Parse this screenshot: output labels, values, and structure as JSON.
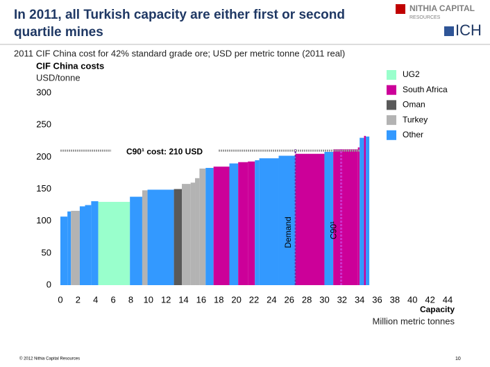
{
  "header": {
    "title_lines": [
      "In 2011, all Turkish capacity are either first or second",
      "quartile mines"
    ],
    "logos": [
      "NITHIA CAPITAL",
      "RESOURCES",
      "ICH"
    ]
  },
  "footer": {
    "copyright": "© 2012 Nithia Capital Resources",
    "page": "10"
  },
  "chart_data": {
    "type": "cost-curve",
    "subtitle": "2011 CIF China cost for 42% standard grade ore; USD per metric tonne (2011 real)",
    "y_label": "CIF China costs",
    "y_unit": "USD/tonne",
    "x_label": "Capacity",
    "x_unit": "Million metric tonnes",
    "xlim": [
      0,
      44
    ],
    "xticks": [
      0,
      2,
      4,
      6,
      8,
      10,
      12,
      14,
      16,
      18,
      20,
      22,
      24,
      26,
      28,
      30,
      32,
      34,
      36,
      38,
      40,
      42,
      44
    ],
    "ylim": [
      0,
      300
    ],
    "yticks": [
      0,
      50,
      100,
      150,
      200,
      250,
      300
    ],
    "legend": [
      {
        "name": "UG2",
        "color": "#99ffcc"
      },
      {
        "name": "South Africa",
        "color": "#cc0099"
      },
      {
        "name": "Oman",
        "color": "#595959"
      },
      {
        "name": "Turkey",
        "color": "#b3b3b3"
      },
      {
        "name": "Other",
        "color": "#3399ff"
      }
    ],
    "x": [
      0,
      0.8,
      1.2,
      2.2,
      2.8,
      3.5,
      4.3,
      7.9,
      9.3,
      9.9,
      12.9,
      13.8,
      14.8,
      15.3,
      15.8,
      16.5,
      17.4,
      19.2,
      20.2,
      21.3,
      22.1,
      22.6,
      24.8,
      26.7,
      30.0,
      31.0,
      33.8,
      34.0,
      34.5,
      34.7
    ],
    "widths": [
      0.8,
      0.4,
      1.0,
      0.6,
      0.7,
      0.8,
      3.6,
      1.4,
      0.6,
      3.0,
      0.9,
      1.0,
      0.5,
      0.5,
      0.7,
      0.9,
      1.8,
      1.0,
      1.1,
      0.8,
      0.5,
      2.2,
      1.9,
      3.3,
      1.0,
      2.8,
      0.2,
      0.5,
      0.2,
      0.4
    ],
    "values": [
      107,
      115,
      116,
      123,
      125,
      131,
      130,
      138,
      148,
      149,
      150,
      158,
      160,
      167,
      182,
      183,
      185,
      190,
      192,
      193,
      195,
      198,
      202,
      205,
      208,
      212,
      215,
      230,
      233,
      232
    ],
    "groups": [
      "Other",
      "Other",
      "Turkey",
      "Other",
      "Other",
      "Other",
      "UG2",
      "Other",
      "Turkey",
      "Other",
      "Oman",
      "Turkey",
      "Turkey",
      "Turkey",
      "Turkey",
      "Other",
      "South Africa",
      "Other",
      "South Africa",
      "South Africa",
      "Other",
      "Other",
      "Other",
      "South Africa",
      "Other",
      "South Africa",
      "South Africa",
      "Other",
      "South Africa",
      "Other"
    ],
    "cost_line": {
      "value": 210,
      "label": "C90¹ cost: 210 USD"
    },
    "demand_line": {
      "x": 26.7,
      "label": "Demand"
    },
    "c90_line": {
      "x": 31.9,
      "label": "C90¹"
    }
  }
}
